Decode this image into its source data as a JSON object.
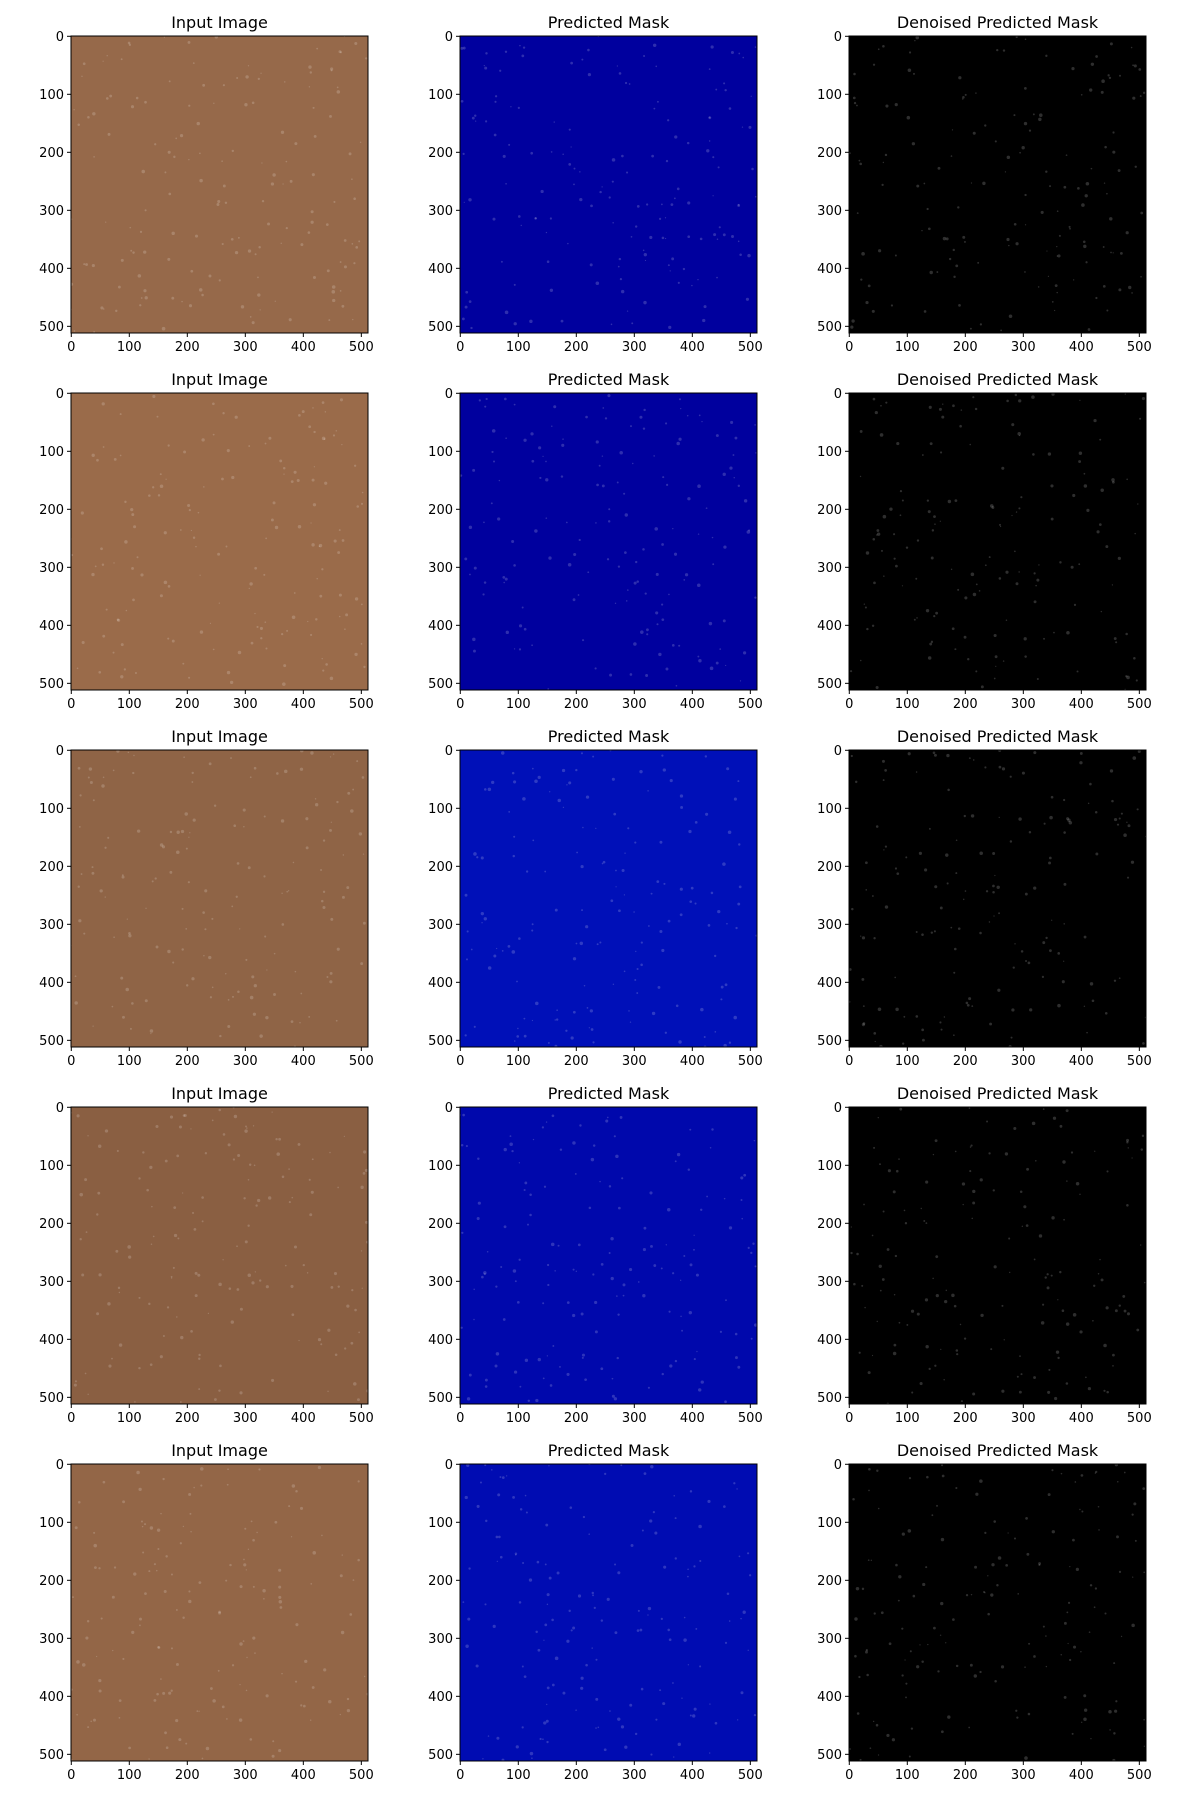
{
  "chart_data": [
    {
      "type": "image",
      "title": "Input Image",
      "color": "#96694a",
      "xlim": [
        -0.5,
        511.5
      ],
      "ylim": [
        511.5,
        -0.5
      ],
      "xticks": [
        0,
        100,
        200,
        300,
        400,
        500
      ],
      "yticks": [
        0,
        100,
        200,
        300,
        400,
        500
      ]
    },
    {
      "type": "image",
      "title": "Predicted Mask",
      "color": "#00009e",
      "xlim": [
        -0.5,
        511.5
      ],
      "ylim": [
        511.5,
        -0.5
      ],
      "xticks": [
        0,
        100,
        200,
        300,
        400,
        500
      ],
      "yticks": [
        0,
        100,
        200,
        300,
        400,
        500
      ]
    },
    {
      "type": "image",
      "title": "Denoised Predicted Mask",
      "color": "#000000",
      "xlim": [
        -0.5,
        511.5
      ],
      "ylim": [
        511.5,
        -0.5
      ],
      "xticks": [
        0,
        100,
        200,
        300,
        400,
        500
      ],
      "yticks": [
        0,
        100,
        200,
        300,
        400,
        500
      ]
    },
    {
      "type": "image",
      "title": "Input Image",
      "color": "#9a6b4a",
      "xlim": [
        -0.5,
        511.5
      ],
      "ylim": [
        511.5,
        -0.5
      ],
      "xticks": [
        0,
        100,
        200,
        300,
        400,
        500
      ],
      "yticks": [
        0,
        100,
        200,
        300,
        400,
        500
      ]
    },
    {
      "type": "image",
      "title": "Predicted Mask",
      "color": "#00009e",
      "xlim": [
        -0.5,
        511.5
      ],
      "ylim": [
        511.5,
        -0.5
      ],
      "xticks": [
        0,
        100,
        200,
        300,
        400,
        500
      ],
      "yticks": [
        0,
        100,
        200,
        300,
        400,
        500
      ]
    },
    {
      "type": "image",
      "title": "Denoised Predicted Mask",
      "color": "#000000",
      "xlim": [
        -0.5,
        511.5
      ],
      "ylim": [
        511.5,
        -0.5
      ],
      "xticks": [
        0,
        100,
        200,
        300,
        400,
        500
      ],
      "yticks": [
        0,
        100,
        200,
        300,
        400,
        500
      ]
    },
    {
      "type": "image",
      "title": "Input Image",
      "color": "#8f6446",
      "xlim": [
        -0.5,
        511.5
      ],
      "ylim": [
        511.5,
        -0.5
      ],
      "xticks": [
        0,
        100,
        200,
        300,
        400,
        500
      ],
      "yticks": [
        0,
        100,
        200,
        300,
        400,
        500
      ]
    },
    {
      "type": "image",
      "title": "Predicted Mask",
      "color": "#0010b8",
      "xlim": [
        -0.5,
        511.5
      ],
      "ylim": [
        511.5,
        -0.5
      ],
      "xticks": [
        0,
        100,
        200,
        300,
        400,
        500
      ],
      "yticks": [
        0,
        100,
        200,
        300,
        400,
        500
      ]
    },
    {
      "type": "image",
      "title": "Denoised Predicted Mask",
      "color": "#000000",
      "xlim": [
        -0.5,
        511.5
      ],
      "ylim": [
        511.5,
        -0.5
      ],
      "xticks": [
        0,
        100,
        200,
        300,
        400,
        500
      ],
      "yticks": [
        0,
        100,
        200,
        300,
        400,
        500
      ]
    },
    {
      "type": "image",
      "title": "Input Image",
      "color": "#8a5f42",
      "xlim": [
        -0.5,
        511.5
      ],
      "ylim": [
        511.5,
        -0.5
      ],
      "xticks": [
        0,
        100,
        200,
        300,
        400,
        500
      ],
      "yticks": [
        0,
        100,
        200,
        300,
        400,
        500
      ]
    },
    {
      "type": "image",
      "title": "Predicted Mask",
      "color": "#0008ac",
      "xlim": [
        -0.5,
        511.5
      ],
      "ylim": [
        511.5,
        -0.5
      ],
      "xticks": [
        0,
        100,
        200,
        300,
        400,
        500
      ],
      "yticks": [
        0,
        100,
        200,
        300,
        400,
        500
      ]
    },
    {
      "type": "image",
      "title": "Denoised Predicted Mask",
      "color": "#000000",
      "xlim": [
        -0.5,
        511.5
      ],
      "ylim": [
        511.5,
        -0.5
      ],
      "xticks": [
        0,
        100,
        200,
        300,
        400,
        500
      ],
      "yticks": [
        0,
        100,
        200,
        300,
        400,
        500
      ]
    },
    {
      "type": "image",
      "title": "Input Image",
      "color": "#936647",
      "xlim": [
        -0.5,
        511.5
      ],
      "ylim": [
        511.5,
        -0.5
      ],
      "xticks": [
        0,
        100,
        200,
        300,
        400,
        500
      ],
      "yticks": [
        0,
        100,
        200,
        300,
        400,
        500
      ]
    },
    {
      "type": "image",
      "title": "Predicted Mask",
      "color": "#000cb2",
      "xlim": [
        -0.5,
        511.5
      ],
      "ylim": [
        511.5,
        -0.5
      ],
      "xticks": [
        0,
        100,
        200,
        300,
        400,
        500
      ],
      "yticks": [
        0,
        100,
        200,
        300,
        400,
        500
      ]
    },
    {
      "type": "image",
      "title": "Denoised Predicted Mask",
      "color": "#000000",
      "xlim": [
        -0.5,
        511.5
      ],
      "ylim": [
        511.5,
        -0.5
      ],
      "xticks": [
        0,
        100,
        200,
        300,
        400,
        500
      ],
      "yticks": [
        0,
        100,
        200,
        300,
        400,
        500
      ]
    }
  ]
}
